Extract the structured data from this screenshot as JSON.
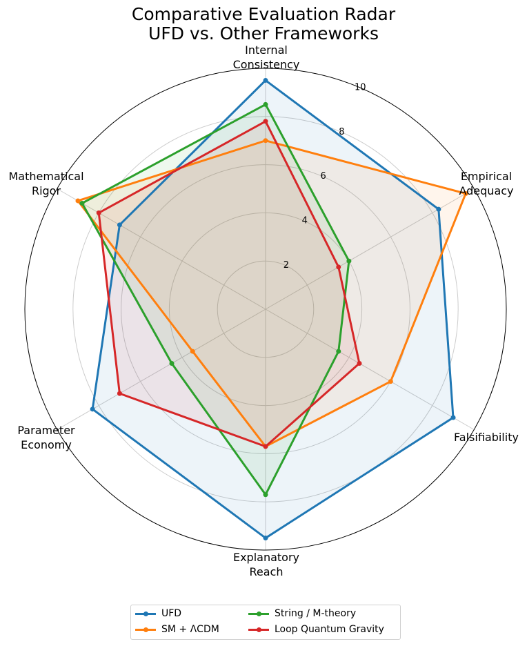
{
  "chart_data": {
    "type": "radar",
    "title": "Comparative Evaluation Radar",
    "subtitle": "UFD vs. Other Frameworks",
    "axes": [
      [
        "Internal",
        "Consistency"
      ],
      [
        "Empirical",
        "Adequacy"
      ],
      [
        "Falsifiability"
      ],
      [
        "Explanatory",
        "Reach"
      ],
      [
        "Parameter",
        "Economy"
      ],
      [
        "Mathematical",
        "Rigor"
      ]
    ],
    "rlim": [
      0,
      10
    ],
    "radial_ticks": [
      "2",
      "4",
      "6",
      "8",
      "10"
    ],
    "grid": true,
    "legend_placement": "bottom-center",
    "series": [
      {
        "name": "UFD",
        "color": "#1f77b4",
        "values": [
          9.5,
          8.3,
          9.0,
          9.5,
          8.3,
          7.0
        ]
      },
      {
        "name": "SM + ΛCDM",
        "color": "#ff7f0e",
        "values": [
          7.0,
          9.6,
          6.0,
          5.7,
          3.5,
          9.0
        ]
      },
      {
        "name": "String / M-theory",
        "color": "#2ca02c",
        "values": [
          8.5,
          4.0,
          3.5,
          7.7,
          4.5,
          8.8
        ]
      },
      {
        "name": "Loop Quantum Gravity",
        "color": "#d62728",
        "values": [
          7.8,
          3.5,
          4.5,
          5.7,
          7.0,
          8.0
        ]
      }
    ]
  }
}
